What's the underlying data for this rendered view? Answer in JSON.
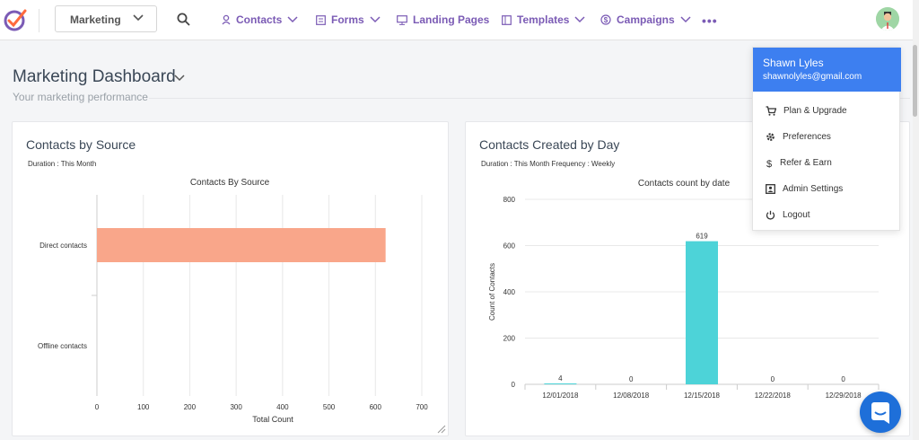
{
  "nav": {
    "app_selector": "Marketing",
    "items": [
      {
        "label": "Contacts"
      },
      {
        "label": "Forms"
      },
      {
        "label": "Landing Pages"
      },
      {
        "label": "Templates"
      },
      {
        "label": "Campaigns"
      }
    ],
    "more": "•••"
  },
  "header": {
    "title": "Marketing Dashboard",
    "subtitle": "Your marketing performance"
  },
  "card_source": {
    "title": "Contacts by Source",
    "duration": "Duration : This Month"
  },
  "card_day": {
    "title": "Contacts Created by Day",
    "duration": "Duration : This Month Frequency : Weekly"
  },
  "user_menu": {
    "name": "Shawn Lyles",
    "email": "shawnolyles@gmail.com",
    "items": [
      {
        "label": "Plan & Upgrade",
        "icon": "cart-icon"
      },
      {
        "label": "Preferences",
        "icon": "gear-icon"
      },
      {
        "label": "Refer & Earn",
        "icon": "dollar-icon"
      },
      {
        "label": "Admin Settings",
        "icon": "admin-icon"
      },
      {
        "label": "Logout",
        "icon": "power-icon"
      }
    ]
  },
  "colors": {
    "accent": "#7b5bb5",
    "menu_header": "#3d7ff0",
    "bar_source": "#f9a68a",
    "bar_day": "#4dd3d8",
    "chat": "#1e6fd9"
  },
  "chart_data": [
    {
      "type": "bar",
      "orientation": "horizontal",
      "title": "Contacts By Source",
      "categories": [
        "Direct contacts",
        "Offline contacts"
      ],
      "series": [
        {
          "name": "Total Count",
          "values": [
            622,
            0
          ]
        }
      ],
      "xlabel": "Total Count",
      "xlim": [
        0,
        700
      ],
      "xticks": [
        0,
        100,
        200,
        300,
        400,
        500,
        600,
        700
      ],
      "legend": "bottom"
    },
    {
      "type": "bar",
      "title": "Contacts count by date",
      "categories": [
        "12/01/2018",
        "12/08/2018",
        "12/15/2018",
        "12/22/2018",
        "12/29/2018"
      ],
      "values": [
        4,
        0,
        619,
        0,
        0
      ],
      "data_labels": [
        "4",
        "0",
        "619",
        "0",
        "0"
      ],
      "ylabel": "Count of Contacts",
      "ylim": [
        0,
        800
      ],
      "yticks": [
        0,
        200,
        400,
        600,
        800
      ],
      "grid": true
    }
  ]
}
